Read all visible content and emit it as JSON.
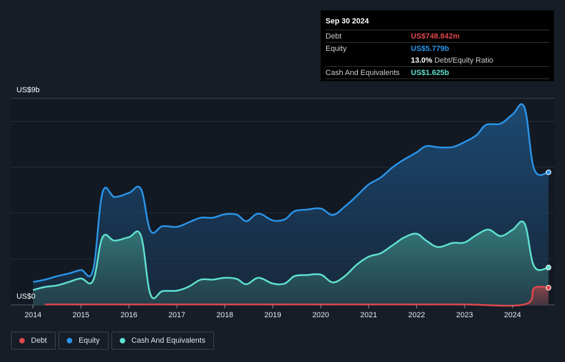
{
  "tooltip": {
    "date": "Sep 30 2024",
    "debt_label": "Debt",
    "debt_value": "US$748.842m",
    "equity_label": "Equity",
    "equity_value": "US$5.779b",
    "ratio_value": "13.0%",
    "ratio_label": "Debt/Equity Ratio",
    "cash_label": "Cash And Equivalents",
    "cash_value": "US$1.625b"
  },
  "legend": [
    {
      "label": "Debt",
      "color": "#e0474c"
    },
    {
      "label": "Equity",
      "color": "#2a94e8"
    },
    {
      "label": "Cash And Equivalents",
      "color": "#5fe0cf"
    }
  ],
  "chart_data": {
    "type": "area",
    "ylabel_top": "US$9b",
    "ylabel_bottom": "US$0",
    "ylim": [
      0,
      9
    ],
    "x_ticks": [
      2014,
      2015,
      2016,
      2017,
      2018,
      2019,
      2020,
      2021,
      2022,
      2023,
      2024
    ],
    "xlim": [
      2014,
      2024.85
    ],
    "series": [
      {
        "name": "Equity",
        "color": "#2a94e8",
        "points": [
          [
            2014.0,
            1.0
          ],
          [
            2014.25,
            1.1
          ],
          [
            2014.5,
            1.25
          ],
          [
            2014.75,
            1.37
          ],
          [
            2015.0,
            1.52
          ],
          [
            2015.25,
            1.5
          ],
          [
            2015.45,
            4.9
          ],
          [
            2015.7,
            4.7
          ],
          [
            2016.0,
            4.88
          ],
          [
            2016.25,
            5.05
          ],
          [
            2016.45,
            3.23
          ],
          [
            2016.7,
            3.43
          ],
          [
            2017.0,
            3.4
          ],
          [
            2017.25,
            3.6
          ],
          [
            2017.5,
            3.8
          ],
          [
            2017.75,
            3.8
          ],
          [
            2018.0,
            3.95
          ],
          [
            2018.25,
            3.93
          ],
          [
            2018.45,
            3.65
          ],
          [
            2018.7,
            3.98
          ],
          [
            2019.0,
            3.68
          ],
          [
            2019.25,
            3.73
          ],
          [
            2019.45,
            4.08
          ],
          [
            2019.7,
            4.15
          ],
          [
            2020.0,
            4.2
          ],
          [
            2020.25,
            3.92
          ],
          [
            2020.5,
            4.28
          ],
          [
            2020.75,
            4.75
          ],
          [
            2021.0,
            5.25
          ],
          [
            2021.25,
            5.55
          ],
          [
            2021.5,
            6.0
          ],
          [
            2021.75,
            6.35
          ],
          [
            2022.0,
            6.65
          ],
          [
            2022.2,
            6.92
          ],
          [
            2022.45,
            6.87
          ],
          [
            2022.75,
            6.88
          ],
          [
            2023.0,
            7.1
          ],
          [
            2023.25,
            7.4
          ],
          [
            2023.45,
            7.85
          ],
          [
            2023.75,
            7.9
          ],
          [
            2024.0,
            8.3
          ],
          [
            2024.25,
            8.6
          ],
          [
            2024.45,
            5.92
          ],
          [
            2024.75,
            5.78
          ]
        ]
      },
      {
        "name": "Cash And Equivalents",
        "color": "#5fe0cf",
        "points": [
          [
            2014.0,
            0.65
          ],
          [
            2014.25,
            0.78
          ],
          [
            2014.5,
            0.85
          ],
          [
            2014.75,
            1.0
          ],
          [
            2015.0,
            1.15
          ],
          [
            2015.25,
            1.05
          ],
          [
            2015.45,
            2.95
          ],
          [
            2015.7,
            2.8
          ],
          [
            2016.0,
            2.95
          ],
          [
            2016.25,
            3.02
          ],
          [
            2016.45,
            0.45
          ],
          [
            2016.7,
            0.6
          ],
          [
            2017.0,
            0.62
          ],
          [
            2017.25,
            0.8
          ],
          [
            2017.5,
            1.1
          ],
          [
            2017.75,
            1.1
          ],
          [
            2018.0,
            1.18
          ],
          [
            2018.25,
            1.13
          ],
          [
            2018.45,
            0.9
          ],
          [
            2018.7,
            1.18
          ],
          [
            2019.0,
            0.93
          ],
          [
            2019.25,
            0.93
          ],
          [
            2019.45,
            1.25
          ],
          [
            2019.7,
            1.3
          ],
          [
            2020.0,
            1.32
          ],
          [
            2020.25,
            0.98
          ],
          [
            2020.5,
            1.25
          ],
          [
            2020.75,
            1.75
          ],
          [
            2021.0,
            2.1
          ],
          [
            2021.25,
            2.25
          ],
          [
            2021.5,
            2.6
          ],
          [
            2021.75,
            2.95
          ],
          [
            2022.0,
            3.1
          ],
          [
            2022.2,
            2.8
          ],
          [
            2022.45,
            2.52
          ],
          [
            2022.75,
            2.7
          ],
          [
            2023.0,
            2.72
          ],
          [
            2023.25,
            3.05
          ],
          [
            2023.5,
            3.28
          ],
          [
            2023.75,
            3.0
          ],
          [
            2024.0,
            3.27
          ],
          [
            2024.25,
            3.55
          ],
          [
            2024.45,
            1.68
          ],
          [
            2024.75,
            1.63
          ]
        ]
      },
      {
        "name": "Debt",
        "color": "#e0474c",
        "points": [
          [
            2014.25,
            0.02
          ],
          [
            2015.0,
            0.02
          ],
          [
            2016.0,
            0.02
          ],
          [
            2017.0,
            0.02
          ],
          [
            2018.0,
            0.02
          ],
          [
            2019.0,
            0.02
          ],
          [
            2020.0,
            0.02
          ],
          [
            2021.0,
            0.02
          ],
          [
            2022.0,
            0.02
          ],
          [
            2023.0,
            0.02
          ],
          [
            2024.25,
            0.02
          ],
          [
            2024.45,
            0.73
          ],
          [
            2024.75,
            0.75
          ]
        ]
      }
    ]
  }
}
